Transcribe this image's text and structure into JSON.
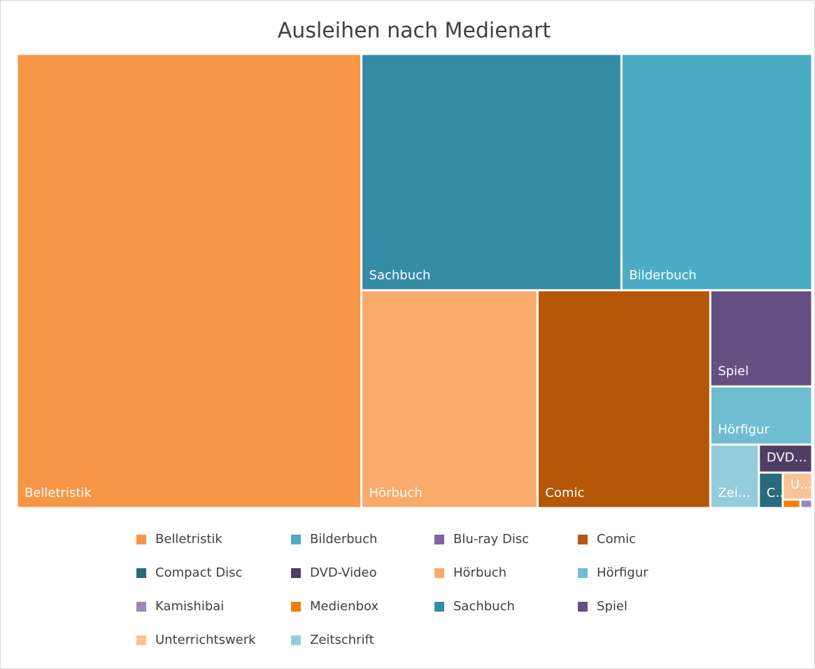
{
  "chart_data": {
    "type": "treemap",
    "title": "Ausleihen nach Medienart",
    "categories": [
      "Belletristik",
      "Bilderbuch",
      "Blu-ray Disc",
      "Comic",
      "Compact Disc",
      "DVD-Video",
      "Hörbuch",
      "Hörfigur",
      "Kamishibai",
      "Medienbox",
      "Sachbuch",
      "Spiel",
      "Unterrichtswerk",
      "Zeitschrift"
    ],
    "values": [
      3144,
      906,
      null,
      756,
      17,
      30,
      771,
      119,
      2,
      3,
      1235,
      197,
      16,
      62
    ],
    "colors": [
      "#f79646",
      "#4bacc6",
      "#8064a2",
      "#b65708",
      "#276a7c",
      "#4f3e63",
      "#f9ab6b",
      "#6fbdd1",
      "#9c88b8",
      "#f07f09",
      "#358ca6",
      "#664f83",
      "#fbc296",
      "#93cddd"
    ],
    "legend": "bottom"
  }
}
